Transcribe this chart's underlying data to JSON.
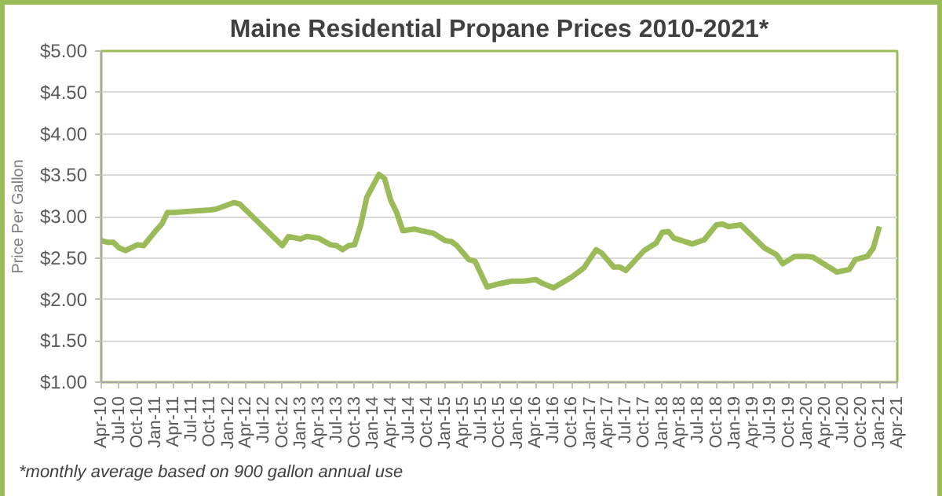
{
  "chart_data": {
    "type": "line",
    "title": "Maine Residential Propane Prices 2010-2021*",
    "ylabel": "Price Per Gallon",
    "annotations": [
      "*monthly average based on 900 gallon annual use"
    ],
    "x": [
      "2010-04",
      "2010-05",
      "2010-06",
      "2010-07",
      "2010-08",
      "2010-10",
      "2010-11",
      "2011-01",
      "2011-02",
      "2011-03",
      "2011-04",
      "2011-10",
      "2011-11",
      "2012-02",
      "2012-03",
      "2012-10",
      "2012-11",
      "2013-01",
      "2013-02",
      "2013-04",
      "2013-06",
      "2013-07",
      "2013-08",
      "2013-09",
      "2013-10",
      "2013-11",
      "2013-12",
      "2014-02",
      "2014-03",
      "2014-04",
      "2014-05",
      "2014-06",
      "2014-08",
      "2014-09",
      "2014-11",
      "2015-01",
      "2015-02",
      "2015-03",
      "2015-05",
      "2015-06",
      "2015-08",
      "2015-10",
      "2015-12",
      "2016-02",
      "2016-04",
      "2016-05",
      "2016-07",
      "2016-10",
      "2016-12",
      "2017-02",
      "2017-03",
      "2017-05",
      "2017-06",
      "2017-07",
      "2017-08",
      "2017-10",
      "2017-12",
      "2018-01",
      "2018-02",
      "2018-03",
      "2018-06",
      "2018-08",
      "2018-10",
      "2018-11",
      "2018-12",
      "2019-02",
      "2019-06",
      "2019-08",
      "2019-09",
      "2019-11",
      "2020-01",
      "2020-02",
      "2020-06",
      "2020-08",
      "2020-09",
      "2020-11",
      "2020-12",
      "2021-01"
    ],
    "series": [
      {
        "color": "#9bbb59",
        "values": [
          2.71,
          2.69,
          2.69,
          2.62,
          2.59,
          2.66,
          2.65,
          2.83,
          2.91,
          3.05,
          3.05,
          3.08,
          3.09,
          3.17,
          3.15,
          2.65,
          2.76,
          2.73,
          2.76,
          2.74,
          2.66,
          2.65,
          2.6,
          2.65,
          2.66,
          2.9,
          3.23,
          3.51,
          3.46,
          3.2,
          3.05,
          2.83,
          2.85,
          2.83,
          2.8,
          2.71,
          2.7,
          2.65,
          2.48,
          2.46,
          2.15,
          2.19,
          2.22,
          2.22,
          2.24,
          2.2,
          2.14,
          2.27,
          2.38,
          2.6,
          2.56,
          2.39,
          2.39,
          2.35,
          2.43,
          2.59,
          2.68,
          2.81,
          2.82,
          2.74,
          2.67,
          2.72,
          2.9,
          2.91,
          2.88,
          2.9,
          2.62,
          2.54,
          2.43,
          2.52,
          2.52,
          2.51,
          2.33,
          2.36,
          2.48,
          2.52,
          2.62,
          2.88
        ]
      }
    ],
    "xlim": [
      "2010-04",
      "2021-04"
    ],
    "xticks": [
      {
        "value": "2010-04",
        "label": "Apr-10"
      },
      {
        "value": "2010-07",
        "label": "Jul-10"
      },
      {
        "value": "2010-10",
        "label": "Oct-10"
      },
      {
        "value": "2011-01",
        "label": "Jan-11"
      },
      {
        "value": "2011-04",
        "label": "Apr-11"
      },
      {
        "value": "2011-07",
        "label": "Jul-11"
      },
      {
        "value": "2011-10",
        "label": "Oct-11"
      },
      {
        "value": "2012-01",
        "label": "Jan-12"
      },
      {
        "value": "2012-04",
        "label": "Apr-12"
      },
      {
        "value": "2012-07",
        "label": "Jul-12"
      },
      {
        "value": "2012-10",
        "label": "Oct-12"
      },
      {
        "value": "2013-01",
        "label": "Jan-13"
      },
      {
        "value": "2013-04",
        "label": "Apr-13"
      },
      {
        "value": "2013-07",
        "label": "Jul-13"
      },
      {
        "value": "2013-10",
        "label": "Oct-13"
      },
      {
        "value": "2014-01",
        "label": "Jan-14"
      },
      {
        "value": "2014-04",
        "label": "Apr-14"
      },
      {
        "value": "2014-07",
        "label": "Jul-14"
      },
      {
        "value": "2014-10",
        "label": "Oct-14"
      },
      {
        "value": "2015-01",
        "label": "Jan-15"
      },
      {
        "value": "2015-04",
        "label": "Apr-15"
      },
      {
        "value": "2015-07",
        "label": "Jul-15"
      },
      {
        "value": "2015-10",
        "label": "Oct-15"
      },
      {
        "value": "2016-01",
        "label": "Jan-16"
      },
      {
        "value": "2016-04",
        "label": "Apr-16"
      },
      {
        "value": "2016-07",
        "label": "Jul-16"
      },
      {
        "value": "2016-10",
        "label": "Oct-16"
      },
      {
        "value": "2017-01",
        "label": "Jan-17"
      },
      {
        "value": "2017-04",
        "label": "Apr-17"
      },
      {
        "value": "2017-07",
        "label": "Jul-17"
      },
      {
        "value": "2017-10",
        "label": "Oct-17"
      },
      {
        "value": "2018-01",
        "label": "Jan-18"
      },
      {
        "value": "2018-04",
        "label": "Apr-18"
      },
      {
        "value": "2018-07",
        "label": "Jul-18"
      },
      {
        "value": "2018-10",
        "label": "Oct-18"
      },
      {
        "value": "2019-01",
        "label": "Jan-19"
      },
      {
        "value": "2019-04",
        "label": "Apr-19"
      },
      {
        "value": "2019-07",
        "label": "Jul-19"
      },
      {
        "value": "2019-10",
        "label": "Oct-19"
      },
      {
        "value": "2020-01",
        "label": "Jan-20"
      },
      {
        "value": "2020-04",
        "label": "Apr-20"
      },
      {
        "value": "2020-07",
        "label": "Jul-20"
      },
      {
        "value": "2020-10",
        "label": "Oct-20"
      },
      {
        "value": "2021-01",
        "label": "Jan-21"
      },
      {
        "value": "2021-04",
        "label": "Apr-21"
      }
    ],
    "ylim": [
      1,
      5
    ],
    "yticks": [
      {
        "value": 1,
        "label": "$1.00"
      },
      {
        "value": 1.5,
        "label": "$1.50"
      },
      {
        "value": 2,
        "label": "$2.00"
      },
      {
        "value": 2.5,
        "label": "$2.50"
      },
      {
        "value": 3,
        "label": "$3.00"
      },
      {
        "value": 3.5,
        "label": "$3.50"
      },
      {
        "value": 4,
        "label": "$4.00"
      },
      {
        "value": 4.5,
        "label": "$4.50"
      },
      {
        "value": 5,
        "label": "$5.00"
      }
    ],
    "grid": "y",
    "marker": "none",
    "line_style": "solid"
  }
}
